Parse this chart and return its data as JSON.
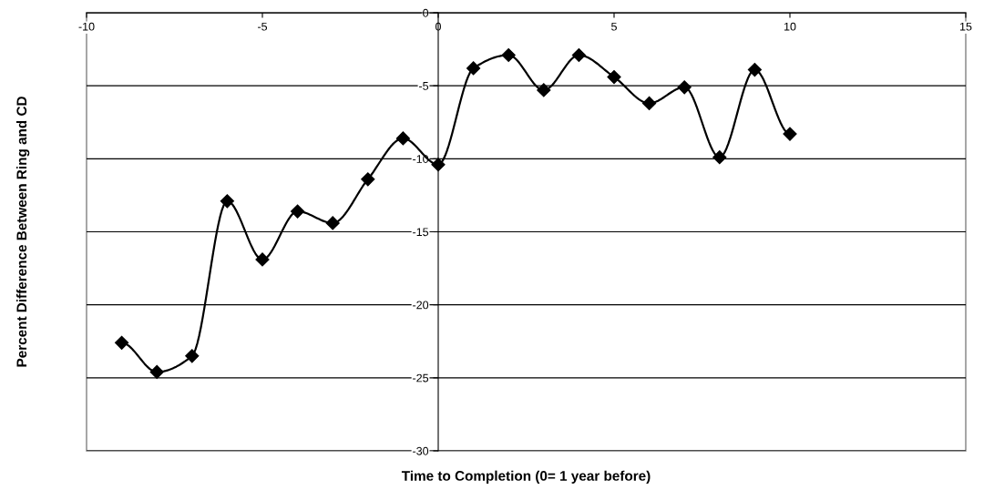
{
  "chart_data": {
    "type": "line",
    "xlabel": "Time to Completion (0= 1 year before)",
    "ylabel": "Percent Difference Between Ring and CD",
    "x": [
      -9,
      -8,
      -7,
      -6,
      -5,
      -4,
      -3,
      -2,
      -1,
      0,
      1,
      2,
      3,
      4,
      5,
      6,
      7,
      8,
      9,
      10
    ],
    "series": [
      {
        "color": "#000000",
        "values": [
          -22.6,
          -24.6,
          -23.5,
          -12.9,
          -16.9,
          -13.6,
          -14.4,
          -11.4,
          -8.6,
          -10.4,
          -3.8,
          -2.9,
          -5.3,
          -2.9,
          -4.4,
          -6.2,
          -5.1,
          -9.9,
          -3.9,
          -8.3
        ]
      }
    ],
    "xlim": [
      -10,
      15
    ],
    "xticks": [
      -10,
      -5,
      0,
      5,
      10,
      15
    ],
    "ylim": [
      -30,
      0
    ],
    "yticks": [
      -30,
      -25,
      -20,
      -15,
      -10,
      -5,
      0
    ],
    "grid": "y",
    "marker": "diamond",
    "line_style": "solid",
    "legend": false
  }
}
